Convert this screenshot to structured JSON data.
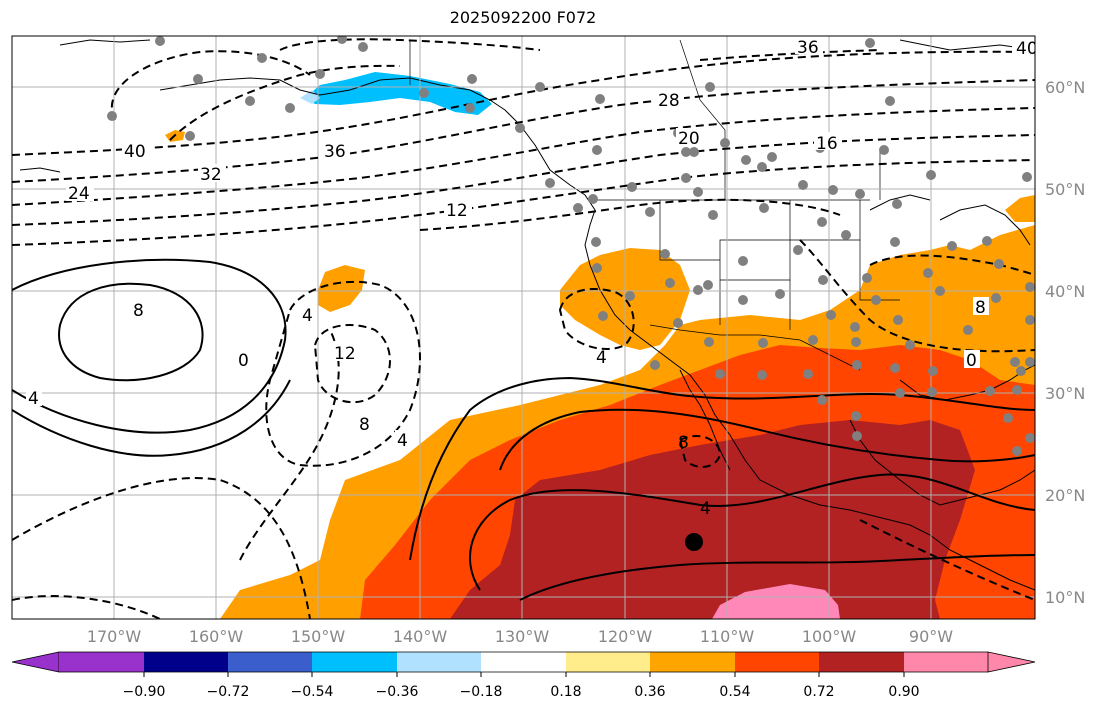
{
  "title": "2025092200 F072",
  "lat_labels": [
    "60°N",
    "50°N",
    "40°N",
    "30°N",
    "20°N",
    "10°N"
  ],
  "lon_labels": [
    "170°W",
    "160°W",
    "150°W",
    "140°W",
    "130°W",
    "120°W",
    "110°W",
    "100°W",
    "90°W"
  ],
  "colorbar": {
    "tick_labels": [
      "−0.90",
      "−0.72",
      "−0.54",
      "−0.36",
      "−0.18",
      "0.18",
      "0.36",
      "0.54",
      "0.72",
      "0.90"
    ],
    "colors": [
      "#9932cc",
      "#00008b",
      "#3a5fcd",
      "#00bfff",
      "#b0e2ff",
      "#ffffff",
      "#ffec8b",
      "#ffa500",
      "#ff4500",
      "#b22222",
      "#ff88aa"
    ]
  },
  "contour_labels": [
    "36",
    "40",
    "28",
    "20",
    "16",
    "40",
    "36",
    "32",
    "24",
    "12",
    "8",
    "0",
    "4",
    "12",
    "8",
    "4",
    "4",
    "8",
    "4",
    "0",
    "8",
    "4"
  ],
  "map_colors": {
    "orange": "#ffa000",
    "red": "#ff4500",
    "darkred": "#b22222",
    "pink": "#ff88b8",
    "cyan": "#00bfff",
    "lightblue": "#b0e2ff",
    "yellow": "#ffec8b"
  }
}
